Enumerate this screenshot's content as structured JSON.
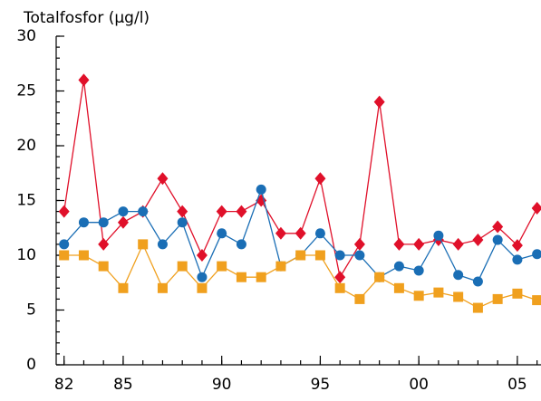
{
  "chart_data": {
    "type": "line",
    "title": "Totalfosfor (µg/l)",
    "x": [
      1982,
      1983,
      1984,
      1985,
      1986,
      1987,
      1988,
      1989,
      1990,
      1991,
      1992,
      1993,
      1994,
      1995,
      1996,
      1997,
      1998,
      1999,
      2000,
      2001,
      2002,
      2003,
      2004,
      2005,
      2006
    ],
    "series": [
      {
        "color": "#e0102a",
        "marker": "diamond",
        "values": [
          14,
          26,
          11,
          13,
          14,
          17,
          14,
          10,
          14,
          14,
          15,
          12,
          12,
          17,
          8,
          11,
          24,
          11,
          11,
          11.4,
          11,
          11.4,
          12.6,
          10.9,
          14.3
        ]
      },
      {
        "color": "#1a6eb5",
        "marker": "circle",
        "values": [
          11,
          13,
          13,
          14,
          14,
          11,
          13,
          8,
          12,
          11,
          16,
          9,
          10,
          12,
          10,
          10,
          8,
          9,
          8.6,
          11.8,
          8.2,
          7.6,
          11.4,
          9.6,
          10.1
        ]
      },
      {
        "color": "#f0a01e",
        "marker": "square",
        "values": [
          10,
          10,
          9,
          7,
          11,
          7,
          9,
          7,
          9,
          8,
          8,
          9,
          10,
          10,
          7,
          6,
          8,
          7,
          6.3,
          6.6,
          6.2,
          5.2,
          6,
          6.5,
          5.9
        ]
      }
    ],
    "xlim": [
      1981.6,
      2006.2
    ],
    "xticks": [
      {
        "value": 1982,
        "label": "82"
      },
      {
        "value": 1985,
        "label": "85"
      },
      {
        "value": 1990,
        "label": "90"
      },
      {
        "value": 1995,
        "label": "95"
      },
      {
        "value": 2000,
        "label": "00"
      },
      {
        "value": 2005,
        "label": "05"
      }
    ],
    "ylim": [
      0,
      30
    ],
    "yticks": [
      0,
      5,
      10,
      15,
      20,
      25,
      30
    ]
  }
}
